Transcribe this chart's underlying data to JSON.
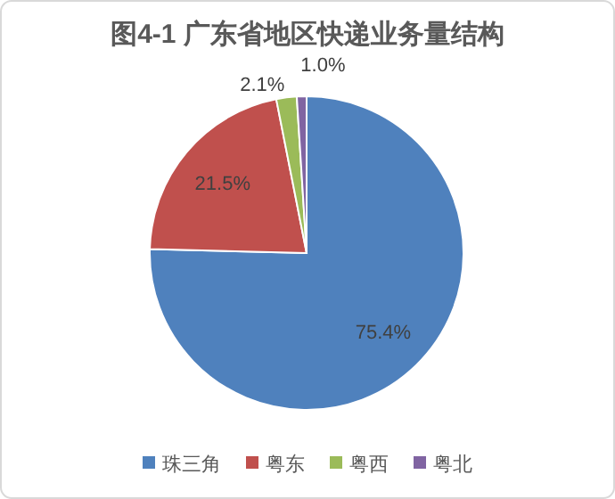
{
  "chart_data": {
    "type": "pie",
    "title": "图4-1 广东省地区快递业务量结构",
    "categories": [
      "珠三角",
      "粤东",
      "粤西",
      "粤北"
    ],
    "values": [
      75.4,
      21.5,
      2.1,
      1.0
    ],
    "colors": [
      "#4f81bd",
      "#c0504d",
      "#9bbb59",
      "#8064a2"
    ],
    "value_labels": [
      "75.4%",
      "21.5%",
      "2.1%",
      "1.0%"
    ],
    "legend": "bottom"
  }
}
